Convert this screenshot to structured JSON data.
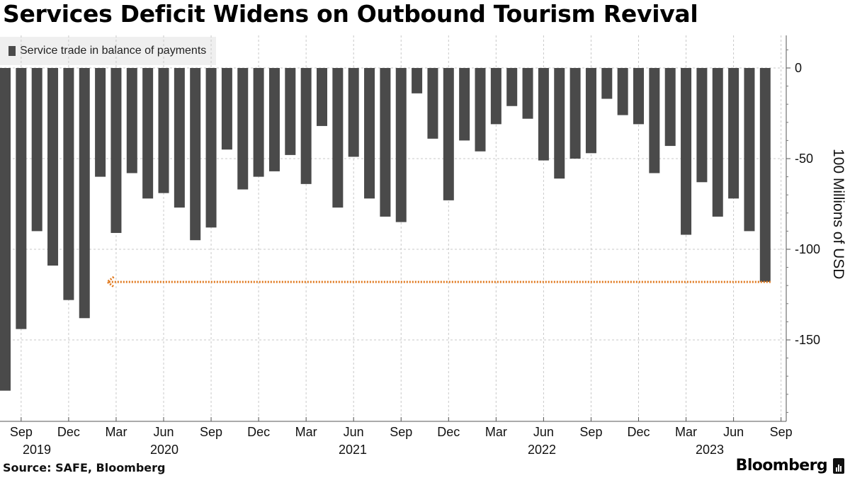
{
  "title": "Services Deficit Widens on Outbound Tourism Revival",
  "source": "Source: SAFE, Bloomberg",
  "brand": "Bloomberg",
  "chart_data": {
    "type": "bar",
    "legend": "Service trade in balance of payments",
    "ylabel": "100 Millions of USD",
    "ylim": [
      -194,
      17
    ],
    "yticks": [
      0,
      -50,
      -100,
      -150
    ],
    "ytick_labels": [
      "0",
      "-50",
      "-100",
      "-150"
    ],
    "grid": true,
    "bar_color": "#4a4a4a",
    "categories": [
      "2019-08",
      "2019-09",
      "2019-10",
      "2019-11",
      "2019-12",
      "2020-01",
      "2020-02",
      "2020-03",
      "2020-04",
      "2020-05",
      "2020-06",
      "2020-07",
      "2020-08",
      "2020-09",
      "2020-10",
      "2020-11",
      "2020-12",
      "2021-01",
      "2021-02",
      "2021-03",
      "2021-04",
      "2021-05",
      "2021-06",
      "2021-07",
      "2021-08",
      "2021-09",
      "2021-10",
      "2021-11",
      "2021-12",
      "2022-01",
      "2022-02",
      "2022-03",
      "2022-04",
      "2022-05",
      "2022-06",
      "2022-07",
      "2022-08",
      "2022-09",
      "2022-10",
      "2022-11",
      "2022-12",
      "2023-01",
      "2023-02",
      "2023-03",
      "2023-04",
      "2023-05",
      "2023-06",
      "2023-07",
      "2023-08"
    ],
    "values": [
      -178,
      -144,
      -90,
      -109,
      -128,
      -138,
      -60,
      -91,
      -58,
      -72,
      -69,
      -77,
      -95,
      -88,
      -45,
      -67,
      -60,
      -57,
      -48,
      -64,
      -32,
      -77,
      -49,
      -72,
      -82,
      -85,
      -14,
      -39,
      -73,
      -40,
      -46,
      -31,
      -21,
      -28,
      -51,
      -61,
      -50,
      -47,
      -17,
      -26,
      -31,
      -58,
      -43,
      -92,
      -63,
      -82,
      -72,
      -90,
      -118
    ],
    "month_ticks": [
      "Sep",
      "Dec",
      "Mar",
      "Jun",
      "Sep",
      "Dec",
      "Mar",
      "Jun",
      "Sep",
      "Dec",
      "Mar",
      "Jun",
      "Sep",
      "Dec",
      "Mar",
      "Jun",
      "Sep"
    ],
    "year_labels": [
      "2019",
      "2020",
      "2021",
      "2022",
      "2023"
    ],
    "annotation": {
      "type": "dotted-arrow",
      "color": "#e07a1f",
      "level": -118,
      "from_category": "2023-08",
      "to_category": "2020-02"
    }
  }
}
